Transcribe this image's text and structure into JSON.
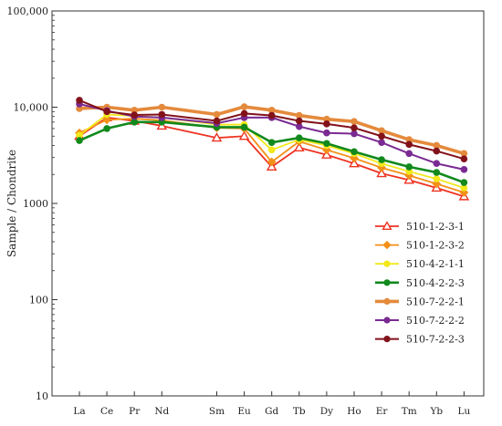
{
  "chart_data": {
    "type": "line",
    "title": "",
    "xlabel": "",
    "ylabel": "Sample / Chondrite",
    "yscale": "log",
    "ylim": [
      10,
      100000
    ],
    "yticks": [
      {
        "value": 10,
        "label": "10"
      },
      {
        "value": 100,
        "label": "100"
      },
      {
        "value": 1000,
        "label": "1000"
      },
      {
        "value": 10000,
        "label": "10,000"
      },
      {
        "value": 100000,
        "label": "100,000"
      }
    ],
    "categories": [
      "La",
      "Ce",
      "Pr",
      "Nd",
      "Sm",
      "Eu",
      "Gd",
      "Tb",
      "Dy",
      "Ho",
      "Er",
      "Tm",
      "Yb",
      "Lu"
    ],
    "category_slots": [
      0,
      1,
      2,
      3,
      5,
      6,
      7,
      8,
      9,
      10,
      11,
      12,
      13,
      14
    ],
    "grid": false,
    "legend_position": "bottom-right",
    "series": [
      {
        "name": "510-1-2-3-1",
        "color": "#ee3322",
        "marker": "triangle-open",
        "values": [
          5000,
          7800,
          7200,
          6400,
          4800,
          5000,
          2400,
          3800,
          3200,
          2600,
          2050,
          1750,
          1450,
          1180
        ]
      },
      {
        "name": "510-1-2-3-2",
        "color": "#f39018",
        "marker": "diamond",
        "values": [
          5400,
          7400,
          7600,
          7300,
          6100,
          6000,
          2700,
          4400,
          3600,
          2950,
          2350,
          1950,
          1600,
          1300
        ]
      },
      {
        "name": "510-4-2-1-1",
        "color": "#f2e81a",
        "marker": "circle",
        "values": [
          5100,
          8400,
          8100,
          7800,
          6600,
          6600,
          3600,
          4600,
          4000,
          3300,
          2600,
          2150,
          1800,
          1450
        ]
      },
      {
        "name": "510-4-2-2-3",
        "color": "#11891c",
        "marker": "circle",
        "values": [
          4500,
          6000,
          7000,
          7000,
          6200,
          6200,
          4300,
          4800,
          4200,
          3450,
          2850,
          2400,
          2100,
          1650
        ]
      },
      {
        "name": "510-7-2-2-1",
        "color": "#e48a3c",
        "marker": "circle",
        "values": [
          9700,
          10000,
          9300,
          10000,
          8400,
          10100,
          9300,
          8200,
          7500,
          7100,
          5700,
          4600,
          4000,
          3300
        ]
      },
      {
        "name": "510-7-2-2-2",
        "color": "#7a2a92",
        "marker": "circle",
        "values": [
          10800,
          9200,
          8000,
          7800,
          6800,
          7800,
          7800,
          6300,
          5400,
          5300,
          4300,
          3300,
          2600,
          2250
        ]
      },
      {
        "name": "510-7-2-2-3",
        "color": "#82121a",
        "marker": "circle",
        "values": [
          11800,
          9000,
          8300,
          8400,
          7200,
          8600,
          8200,
          7200,
          6700,
          6100,
          5000,
          4100,
          3500,
          2900
        ]
      }
    ]
  }
}
